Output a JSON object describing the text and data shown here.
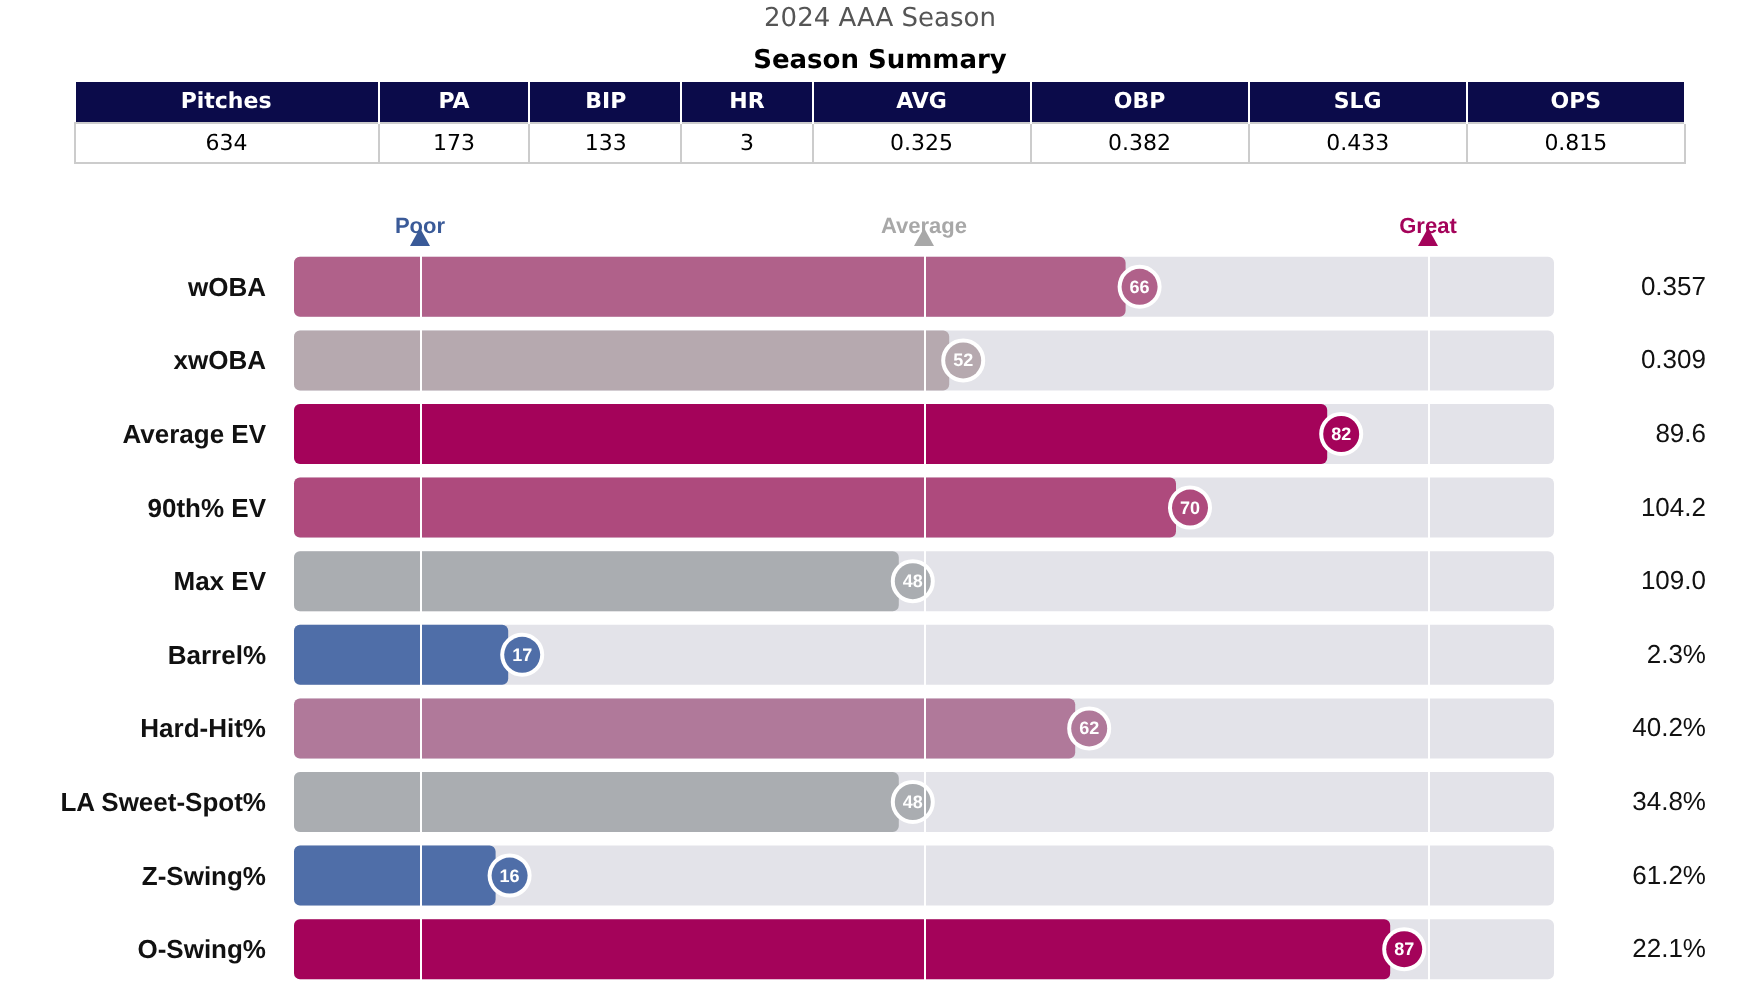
{
  "chart_data": {
    "type": "bar",
    "orientation": "horizontal",
    "title": "2024 AAA Season",
    "subtitle": "Season Summary",
    "categories": [
      "wOBA",
      "xwOBA",
      "Average EV",
      "90th% EV",
      "Max EV",
      "Barrel%",
      "Hard-Hit%",
      "LA Sweet-Spot%",
      "Z-Swing%",
      "O-Swing%"
    ],
    "values": [
      66,
      52,
      82,
      70,
      48,
      17,
      62,
      48,
      16,
      87
    ],
    "colors": [
      "#b0618a",
      "#b6a9af",
      "#a4035a",
      "#ae4a7d",
      "#aaadb1",
      "#4f6ea8",
      "#b0799a",
      "#aaadb1",
      "#4f6ea8",
      "#a4035a"
    ],
    "xlim": [
      0,
      100
    ],
    "tick_labels": "y",
    "data_labels": true,
    "grid": false,
    "ref_lines": [
      {
        "axis": "x",
        "value": 10,
        "label": "Poor",
        "color": "#ffffff"
      },
      {
        "axis": "x",
        "value": 50,
        "label": "Average",
        "color": "#ffffff"
      },
      {
        "axis": "x",
        "value": 90,
        "label": "Great",
        "color": "#ffffff"
      }
    ],
    "annotations": [
      "Pitches",
      "PA",
      "BIP",
      "HR",
      "AVG",
      "OBP",
      "SLG",
      "OPS",
      "634",
      "173",
      "133",
      "3",
      "0.325",
      "0.382",
      "0.433",
      "0.815",
      "0.357",
      "0.309",
      "89.6",
      "104.2",
      "109.0",
      "2.3%",
      "40.2%",
      "34.8%",
      "61.2%",
      "22.1%"
    ]
  }
}
